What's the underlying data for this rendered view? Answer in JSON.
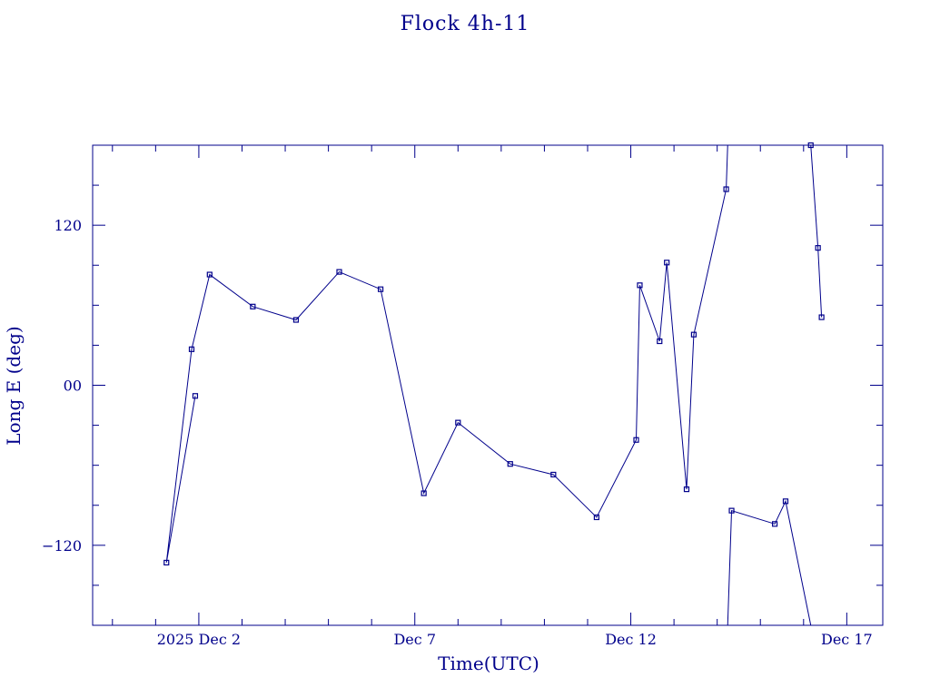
{
  "chart_data": {
    "type": "line",
    "title": "Flock 4h-11",
    "xlabel": "Time(UTC)",
    "ylabel": "Long E (deg)",
    "x_unit": "days (UTC), 2025 Dec",
    "xlim": [
      "2025-11-29T13:00",
      "2025-12-17T20:00"
    ],
    "ylim": [
      -180,
      180
    ],
    "x_ticks": [
      {
        "date": "2025-12-02",
        "label": "2025 Dec  2"
      },
      {
        "date": "2025-12-07",
        "label": "Dec  7"
      },
      {
        "date": "2025-12-12",
        "label": "Dec 12"
      },
      {
        "date": "2025-12-17",
        "label": "Dec 17"
      }
    ],
    "y_ticks": [
      {
        "value": 120,
        "label": "120"
      },
      {
        "value": 0,
        "label": "00"
      },
      {
        "value": -120,
        "label": "−120"
      }
    ],
    "grid": false,
    "series": [
      {
        "color": "#00008b",
        "marker": "square",
        "x": [
          "2025-11-31T22:00",
          "2025-12-01T06:00",
          "2025-12-01T20:00",
          "2025-12-02T06:00",
          "2025-12-03T06:00",
          "2025-12-04T06:00",
          "2025-12-05T06:00",
          "2025-12-06T05:00",
          "2025-12-07T05:00",
          "2025-12-08T00:00",
          "2025-12-09T05:00",
          "2025-12-10T05:00",
          "2025-12-11T05:00",
          "2025-12-12T03:00",
          "2025-12-12T05:00",
          "2025-12-12T16:00",
          "2025-12-12T20:00",
          "2025-12-13T07:00",
          "2025-12-13T11:00",
          "2025-12-14T05:00",
          "2025-12-14T08:00",
          "2025-12-15T08:00",
          "2025-12-15T14:00",
          "2025-12-16T04:00",
          "2025-12-16T08:00",
          "2025-12-16T10:00"
        ],
        "y": [
          -8,
          -133,
          27,
          83,
          59,
          49,
          85,
          72,
          -81,
          -28,
          -59,
          -67,
          -99,
          -41,
          75,
          33,
          92,
          -78,
          38,
          147,
          -94,
          -104,
          -87,
          180,
          103,
          51
        ],
        "segments_break_at_wrap": true
      }
    ]
  }
}
